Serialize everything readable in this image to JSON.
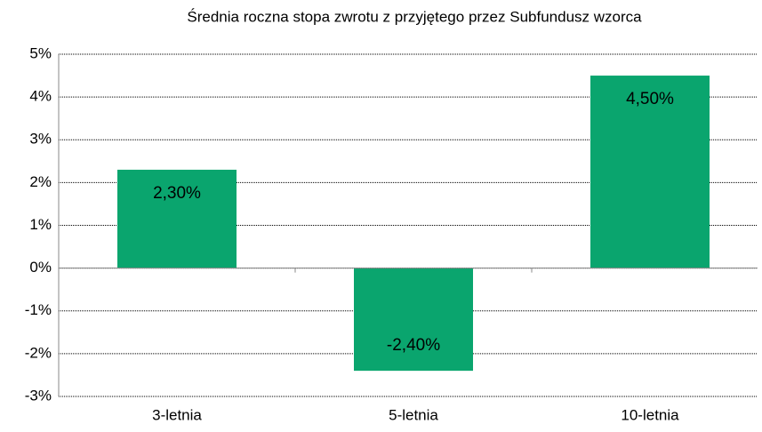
{
  "chart_data": {
    "type": "bar",
    "title": "Średnia roczna stopa zwrotu z przyjętego przez Subfundusz wzorca",
    "categories": [
      "3-letnia",
      "5-letnia",
      "10-letnia"
    ],
    "values": [
      2.3,
      -2.4,
      4.5
    ],
    "value_labels": [
      "2,30%",
      "-2,40%",
      "4,50%"
    ],
    "color": "#0aa56e",
    "ylim": [
      -3,
      5
    ],
    "yticks": [
      {
        "value": -3,
        "label": "-3%"
      },
      {
        "value": -2,
        "label": "-2%"
      },
      {
        "value": -1,
        "label": "-1%"
      },
      {
        "value": 0,
        "label": "0%"
      },
      {
        "value": 1,
        "label": "1%"
      },
      {
        "value": 2,
        "label": "2%"
      },
      {
        "value": 3,
        "label": "3%"
      },
      {
        "value": 4,
        "label": "4%"
      },
      {
        "value": 5,
        "label": "5%"
      }
    ],
    "grid": true
  }
}
